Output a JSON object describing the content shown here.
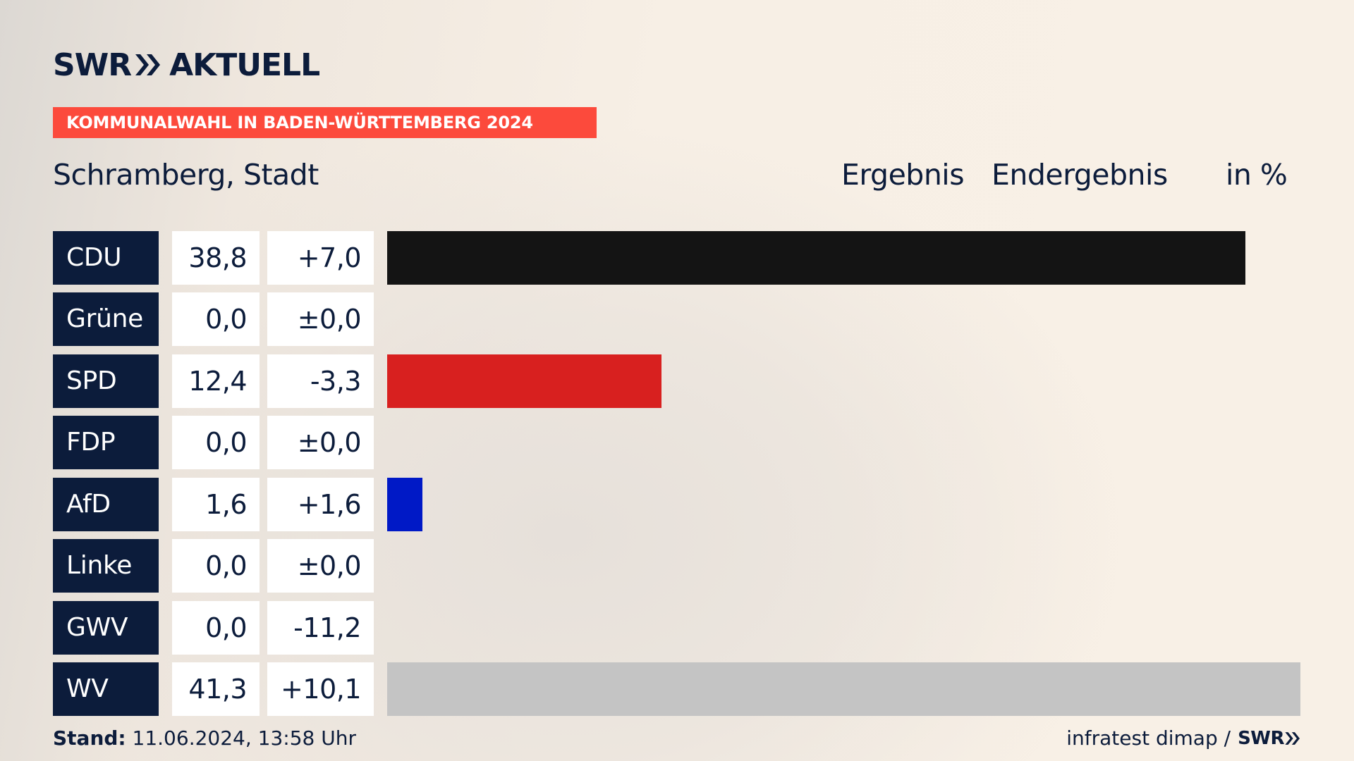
{
  "header": {
    "brand": "SWR",
    "brand_sub": "AKTUELL",
    "kicker": "KOMMUNALWAHL IN BADEN-WÜRTTEMBERG 2024",
    "title": "Schramberg, Stadt",
    "col_result": "Ergebnis",
    "col_status": "Endergebnis",
    "col_unit": "in %"
  },
  "colors": {
    "navy": "#0c1c3b",
    "kicker": "#fc4a3c"
  },
  "chart_data": {
    "type": "bar",
    "title": "Schramberg, Stadt",
    "unit": "in %",
    "categories": [
      "CDU",
      "Grüne",
      "SPD",
      "FDP",
      "AfD",
      "Linke",
      "GWV",
      "WV"
    ],
    "values": [
      38.8,
      0.0,
      12.4,
      0.0,
      1.6,
      0.0,
      0.0,
      41.3
    ],
    "value_labels": [
      "38,8",
      "0,0",
      "12,4",
      "0,0",
      "1,6",
      "0,0",
      "0,0",
      "41,3"
    ],
    "diff_labels": [
      "+7,0",
      "±0,0",
      "-3,3",
      "±0,0",
      "+1,6",
      "±0,0",
      "-11,2",
      "+10,1"
    ],
    "bar_colors": [
      "#141414",
      "#1a9b3a",
      "#d8201f",
      "#f5d000",
      "#0019c6",
      "#b8205c",
      "#8a8a8a",
      "#c4c4c4"
    ],
    "xlim": [
      0,
      41.3
    ],
    "rows": [
      {
        "party": "CDU",
        "value": "38,8",
        "diff": "+7,0"
      },
      {
        "party": "Grüne",
        "value": "0,0",
        "diff": "±0,0"
      },
      {
        "party": "SPD",
        "value": "12,4",
        "diff": "-3,3"
      },
      {
        "party": "FDP",
        "value": "0,0",
        "diff": "±0,0"
      },
      {
        "party": "AfD",
        "value": "1,6",
        "diff": "+1,6"
      },
      {
        "party": "Linke",
        "value": "0,0",
        "diff": "±0,0"
      },
      {
        "party": "GWV",
        "value": "0,0",
        "diff": "-11,2"
      },
      {
        "party": "WV",
        "value": "41,3",
        "diff": "+10,1"
      }
    ]
  },
  "footer": {
    "stand_label": "Stand:",
    "stand_value": "11.06.2024, 13:58 Uhr",
    "source": "infratest dimap /",
    "brand_small": "SWR"
  }
}
